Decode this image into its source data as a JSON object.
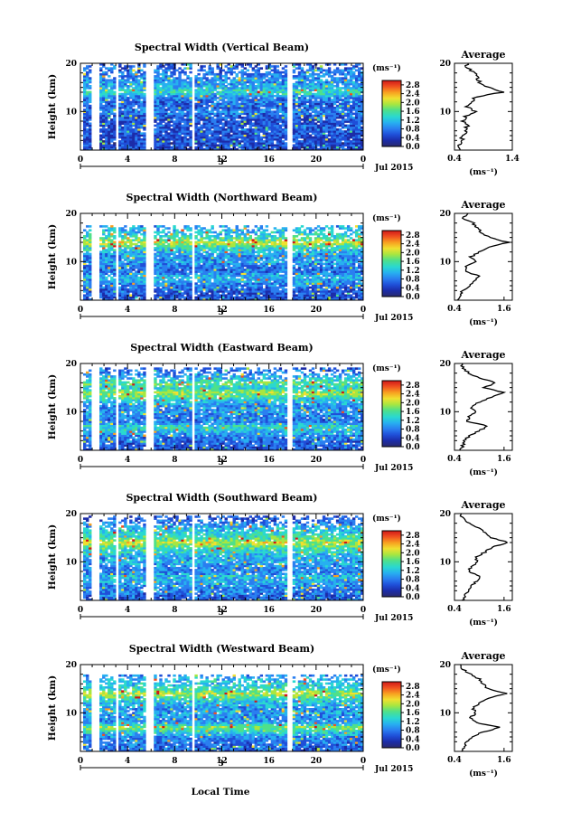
{
  "figure": {
    "xlabel_bottom": "Local Time",
    "date_label": "Jul 2015",
    "day_label": "3",
    "ylabel": "Height (km)",
    "colorbar_unit": "(ms⁻¹)",
    "average_title": "Average",
    "average_xlabel": "(ms⁻¹)"
  },
  "colors": {
    "colormap": [
      "#2a2a6e",
      "#1c2ca8",
      "#1f4fd8",
      "#2a7ff0",
      "#27b0f0",
      "#2ad8d0",
      "#4fe08a",
      "#a8e640",
      "#f0e030",
      "#f8a020",
      "#f05020",
      "#d01818"
    ],
    "background": "#ffffff",
    "axes": "#000000"
  },
  "chart_data": [
    {
      "type": "heatmap",
      "title": "Spectral Width (Vertical Beam)",
      "xlabel": "Local Time",
      "ylabel": "Height (km)",
      "x_ticks": [
        "0",
        "4",
        "8",
        "12",
        "16",
        "20",
        "0"
      ],
      "xlim": [
        0,
        24
      ],
      "y_ticks": [
        "10",
        "20"
      ],
      "ylim": [
        2,
        20
      ],
      "colorbar_ticks": [
        "0.0",
        "0.4",
        "0.8",
        "1.2",
        "1.6",
        "2.0",
        "2.4",
        "2.8"
      ],
      "colorbar_range": [
        0,
        3.0
      ],
      "data_gaps_hours": [
        [
          0.0,
          0.2
        ],
        [
          0.9,
          1.5
        ],
        [
          2.9,
          3.2
        ],
        [
          5.6,
          6.2
        ],
        [
          9.5,
          9.8
        ],
        [
          17.6,
          18.0
        ]
      ],
      "top_height_km": 19.8,
      "profile_height_km": [
        2,
        3,
        4,
        5,
        6,
        7,
        8,
        9,
        10,
        11,
        12,
        13,
        14,
        15,
        16,
        17,
        18,
        19,
        20
      ],
      "profile_width_ms": [
        0.48,
        0.5,
        0.52,
        0.55,
        0.6,
        0.62,
        0.55,
        0.6,
        0.75,
        0.62,
        0.7,
        0.75,
        1.25,
        1.0,
        0.85,
        0.8,
        0.75,
        0.62,
        0.6
      ],
      "average": {
        "title": "Average",
        "xlabel": "(ms⁻¹)",
        "x_ticks": [
          "0.4",
          "1.4"
        ],
        "xlim": [
          0.4,
          1.4
        ],
        "y_ticks": [
          "10",
          "20"
        ]
      }
    },
    {
      "type": "heatmap",
      "title": "Spectral Width (Northward Beam)",
      "xlabel": "Local Time",
      "ylabel": "Height (km)",
      "x_ticks": [
        "0",
        "4",
        "8",
        "12",
        "16",
        "20",
        "0"
      ],
      "xlim": [
        0,
        24
      ],
      "y_ticks": [
        "10",
        "20"
      ],
      "ylim": [
        2,
        20
      ],
      "colorbar_ticks": [
        "0.0",
        "0.4",
        "0.8",
        "1.2",
        "1.6",
        "2.0",
        "2.4",
        "2.8"
      ],
      "colorbar_range": [
        0,
        3.0
      ],
      "data_gaps_hours": [
        [
          0.0,
          0.2
        ],
        [
          0.9,
          1.5
        ],
        [
          2.9,
          3.2
        ],
        [
          5.6,
          6.2
        ],
        [
          9.5,
          9.8
        ],
        [
          17.6,
          18.0
        ]
      ],
      "top_height_km": 17.5,
      "profile_height_km": [
        2,
        3,
        4,
        5,
        6,
        7,
        8,
        9,
        10,
        11,
        12,
        13,
        14,
        15,
        16,
        17,
        18,
        19,
        20
      ],
      "profile_width_ms": [
        0.5,
        0.55,
        0.6,
        0.75,
        0.9,
        1.0,
        0.65,
        0.7,
        0.9,
        0.8,
        1.0,
        1.2,
        1.7,
        1.25,
        1.05,
        0.95,
        0.85,
        0.6,
        0.7
      ],
      "average": {
        "title": "Average",
        "xlabel": "(ms⁻¹)",
        "x_ticks": [
          "0.4",
          "1.6"
        ],
        "xlim": [
          0.4,
          1.8
        ],
        "y_ticks": [
          "10",
          "20"
        ]
      }
    },
    {
      "type": "heatmap",
      "title": "Spectral Width (Eastward Beam)",
      "xlabel": "Local Time",
      "ylabel": "Height (km)",
      "x_ticks": [
        "0",
        "4",
        "8",
        "12",
        "16",
        "20",
        "0"
      ],
      "xlim": [
        0,
        24
      ],
      "y_ticks": [
        "10",
        "20"
      ],
      "ylim": [
        2,
        20
      ],
      "colorbar_ticks": [
        "0.0",
        "0.4",
        "0.8",
        "1.2",
        "1.6",
        "2.0",
        "2.4",
        "2.8"
      ],
      "colorbar_range": [
        0,
        3.0
      ],
      "data_gaps_hours": [
        [
          0.0,
          0.2
        ],
        [
          0.9,
          1.5
        ],
        [
          2.9,
          3.2
        ],
        [
          5.6,
          6.2
        ],
        [
          9.5,
          9.8
        ],
        [
          17.6,
          18.0
        ]
      ],
      "top_height_km": 19.0,
      "profile_height_km": [
        2,
        3,
        4,
        5,
        6,
        7,
        8,
        9,
        10,
        11,
        12,
        13,
        14,
        15,
        16,
        17,
        18,
        19,
        20
      ],
      "profile_width_ms": [
        0.55,
        0.6,
        0.65,
        0.75,
        1.0,
        1.2,
        0.7,
        0.75,
        0.9,
        0.8,
        1.0,
        1.3,
        1.6,
        1.1,
        1.4,
        1.0,
        0.75,
        0.6,
        0.55
      ],
      "average": {
        "title": "Average",
        "xlabel": "(ms⁻¹)",
        "x_ticks": [
          "0.4",
          "1.6"
        ],
        "xlim": [
          0.4,
          1.8
        ],
        "y_ticks": [
          "10",
          "20"
        ]
      }
    },
    {
      "type": "heatmap",
      "title": "Spectral Width (Southward Beam)",
      "xlabel": "Local Time",
      "ylabel": "Height (km)",
      "x_ticks": [
        "0",
        "4",
        "8",
        "12",
        "16",
        "20",
        "0"
      ],
      "xlim": [
        0,
        24
      ],
      "y_ticks": [
        "10",
        "20"
      ],
      "ylim": [
        2,
        20
      ],
      "colorbar_ticks": [
        "0.0",
        "0.4",
        "0.8",
        "1.2",
        "1.6",
        "2.0",
        "2.4",
        "2.8"
      ],
      "colorbar_range": [
        0,
        3.0
      ],
      "data_gaps_hours": [
        [
          0.0,
          0.2
        ],
        [
          0.9,
          1.5
        ],
        [
          2.9,
          3.2
        ],
        [
          5.6,
          6.2
        ],
        [
          9.5,
          9.8
        ],
        [
          17.6,
          18.0
        ]
      ],
      "top_height_km": 19.5,
      "profile_height_km": [
        2,
        3,
        4,
        5,
        6,
        7,
        8,
        9,
        10,
        11,
        12,
        13,
        14,
        15,
        16,
        17,
        18,
        19,
        20
      ],
      "profile_width_ms": [
        0.6,
        0.65,
        0.75,
        0.8,
        0.95,
        1.05,
        0.75,
        0.8,
        0.95,
        0.9,
        1.15,
        1.3,
        1.7,
        1.3,
        1.15,
        1.0,
        0.75,
        0.6,
        0.55
      ],
      "average": {
        "title": "Average",
        "xlabel": "(ms⁻¹)",
        "x_ticks": [
          "0.4",
          "1.6"
        ],
        "xlim": [
          0.4,
          1.8
        ],
        "y_ticks": [
          "10",
          "20"
        ]
      }
    },
    {
      "type": "heatmap",
      "title": "Spectral Width (Westward Beam)",
      "xlabel": "Local Time",
      "ylabel": "Height (km)",
      "x_ticks": [
        "0",
        "4",
        "8",
        "12",
        "16",
        "20",
        "0"
      ],
      "xlim": [
        0,
        24
      ],
      "y_ticks": [
        "10",
        "20"
      ],
      "ylim": [
        2,
        20
      ],
      "colorbar_ticks": [
        "0.0",
        "0.4",
        "0.8",
        "1.2",
        "1.6",
        "2.0",
        "2.4",
        "2.8"
      ],
      "colorbar_range": [
        0,
        3.0
      ],
      "data_gaps_hours": [
        [
          0.0,
          0.2
        ],
        [
          0.9,
          1.5
        ],
        [
          2.9,
          3.2
        ],
        [
          5.6,
          6.2
        ],
        [
          9.5,
          9.8
        ],
        [
          17.6,
          18.0
        ]
      ],
      "top_height_km": 18.0,
      "profile_height_km": [
        2,
        3,
        4,
        5,
        6,
        7,
        8,
        9,
        10,
        11,
        12,
        13,
        14,
        15,
        16,
        17,
        18,
        19,
        20
      ],
      "profile_width_ms": [
        0.6,
        0.65,
        0.7,
        0.8,
        1.1,
        1.5,
        0.9,
        0.8,
        0.9,
        0.85,
        1.0,
        1.2,
        1.65,
        1.2,
        1.1,
        1.0,
        0.8,
        0.6,
        0.55
      ],
      "average": {
        "title": "Average",
        "xlabel": "(ms⁻¹)",
        "x_ticks": [
          "0.4",
          "1.6"
        ],
        "xlim": [
          0.4,
          1.8
        ],
        "y_ticks": [
          "10",
          "20"
        ]
      }
    }
  ]
}
